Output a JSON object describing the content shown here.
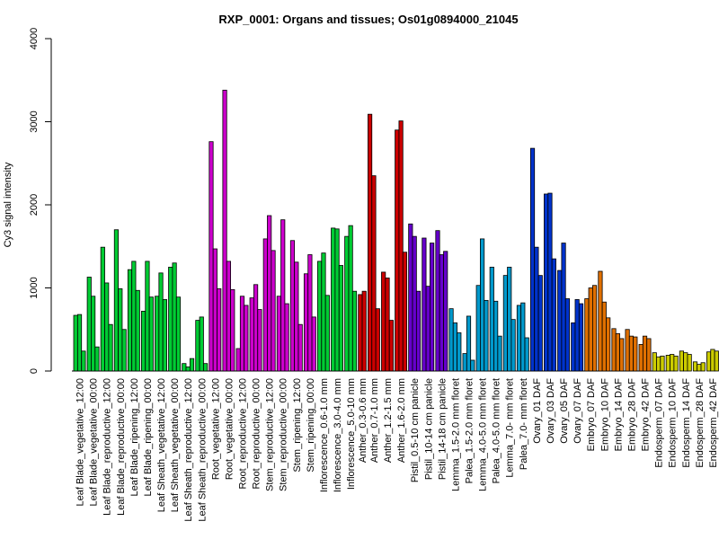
{
  "chart_data": {
    "type": "bar",
    "title": "RXP_0001: Organs and tissues; Os01g0894000_21045",
    "xlabel": "",
    "ylabel": "Cy3 signal intensity",
    "ylim": [
      0,
      4000
    ],
    "yticks": [
      0,
      1000,
      2000,
      3000,
      4000
    ],
    "grid": false,
    "legend": "none",
    "groups": [
      {
        "label": "Leaf Blade_vegetative_12:00",
        "color": "#00cc33",
        "values": [
          670,
          680,
          240
        ]
      },
      {
        "label": "Leaf Blade_vegetative_00:00",
        "color": "#00cc33",
        "values": [
          1130,
          900,
          290
        ]
      },
      {
        "label": "Leaf Blade_reproductive_12:00",
        "color": "#00cc33",
        "values": [
          1490,
          1060,
          560
        ]
      },
      {
        "label": "Leaf Blade_reproductive_00:00",
        "color": "#00cc33",
        "values": [
          1700,
          990,
          500
        ]
      },
      {
        "label": "Leaf Blade_ripening_12:00",
        "color": "#00cc33",
        "values": [
          1220,
          1320,
          970
        ]
      },
      {
        "label": "Leaf Blade_ripening_00:00",
        "color": "#00cc33",
        "values": [
          720,
          1320,
          890
        ]
      },
      {
        "label": "Leaf Sheath_vegetative_12:00",
        "color": "#00cc33",
        "values": [
          900,
          1180,
          860
        ]
      },
      {
        "label": "Leaf Sheath_vegetative_00:00",
        "color": "#00cc33",
        "values": [
          1250,
          1300,
          890
        ]
      },
      {
        "label": "Leaf Sheath_reproductive_12:00",
        "color": "#00cc33",
        "values": [
          90,
          50,
          150
        ]
      },
      {
        "label": "Leaf Sheath_reproductive_00:00",
        "color": "#00cc33",
        "values": [
          610,
          650,
          90
        ]
      },
      {
        "label": "Root_vegetative_12:00",
        "color": "#cc00cc",
        "values": [
          2760,
          1470,
          990
        ]
      },
      {
        "label": "Root_vegetative_00:00",
        "color": "#cc00cc",
        "values": [
          3380,
          1320,
          980
        ]
      },
      {
        "label": "Root_reproductive_12:00",
        "color": "#cc00cc",
        "values": [
          270,
          900,
          790
        ]
      },
      {
        "label": "Root_reproductive_00:00",
        "color": "#cc00cc",
        "values": [
          880,
          1040,
          740
        ]
      },
      {
        "label": "Stem_reproductive_12:00",
        "color": "#cc00cc",
        "values": [
          1590,
          1870,
          1450
        ]
      },
      {
        "label": "Stem_reproductive_00:00",
        "color": "#cc00cc",
        "values": [
          900,
          1820,
          810
        ]
      },
      {
        "label": "Stem_ripening_12:00",
        "color": "#cc00cc",
        "values": [
          1570,
          1310,
          560
        ]
      },
      {
        "label": "Stem_ripening_00:00",
        "color": "#cc00cc",
        "values": [
          1170,
          1400,
          650
        ]
      },
      {
        "label": "Inflorescence_0.6-1.0 mm",
        "color": "#00cc33",
        "values": [
          1320,
          1420,
          910
        ]
      },
      {
        "label": "Inflorescence_3.0-4.0 mm",
        "color": "#00cc33",
        "values": [
          1720,
          1710,
          1270
        ]
      },
      {
        "label": "Inflorescence_5.0-10 mm",
        "color": "#00cc33",
        "values": [
          1620,
          1750,
          960
        ]
      },
      {
        "label": "Anther_0.3-0.6 mm",
        "color": "#cc0000",
        "values": [
          920,
          960
        ]
      },
      {
        "label": "Anther_0.7-1.0 mm",
        "color": "#cc0000",
        "values": [
          3090,
          2350,
          750
        ]
      },
      {
        "label": "Anther_1.2-1.5 mm",
        "color": "#cc0000",
        "values": [
          1190,
          1120,
          610
        ]
      },
      {
        "label": "Anther_1.6-2.0 mm",
        "color": "#cc0000",
        "values": [
          2900,
          3010,
          1430
        ]
      },
      {
        "label": "Pistil_0.5-10 cm panicle",
        "color": "#6600cc",
        "values": [
          1770,
          1620,
          960
        ]
      },
      {
        "label": "Pistil_10-14 cm panicle",
        "color": "#6600cc",
        "values": [
          1600,
          1020,
          1540
        ]
      },
      {
        "label": "Pistil_14-18 cm panicle",
        "color": "#6600cc",
        "values": [
          1690,
          1400,
          1440
        ]
      },
      {
        "label": "Lemma_1.5-2.0 mm floret",
        "color": "#0099cc",
        "values": [
          750,
          580,
          460
        ]
      },
      {
        "label": "Palea_1.5-2.0 mm floret",
        "color": "#0099cc",
        "values": [
          210,
          660,
          130
        ]
      },
      {
        "label": "Lemma_4.0-5.0 mm floret",
        "color": "#0099cc",
        "values": [
          1030,
          1590,
          850
        ]
      },
      {
        "label": "Palea_4.0-5.0 mm floret",
        "color": "#0099cc",
        "values": [
          1250,
          840,
          420
        ]
      },
      {
        "label": "Lemma_7.0- mm floret",
        "color": "#0099cc",
        "values": [
          1150,
          1250,
          620
        ]
      },
      {
        "label": "Palea_7.0- mm floret",
        "color": "#0099cc",
        "values": [
          790,
          820,
          400
        ]
      },
      {
        "label": "Ovary_01 DAF",
        "color": "#0033cc",
        "values": [
          2680,
          1490,
          1150
        ]
      },
      {
        "label": "Ovary_03 DAF",
        "color": "#0033cc",
        "values": [
          2130,
          2140,
          1350
        ]
      },
      {
        "label": "Ovary_05 DAF",
        "color": "#0033cc",
        "values": [
          1210,
          1540,
          870
        ]
      },
      {
        "label": "Ovary_07 DAF",
        "color": "#0033cc",
        "values": [
          580,
          860,
          810
        ]
      },
      {
        "label": "Embryo_07 DAF",
        "color": "#e07000",
        "values": [
          870,
          1000,
          1030
        ]
      },
      {
        "label": "Embryo_10 DAF",
        "color": "#e07000",
        "values": [
          1200,
          830,
          640
        ]
      },
      {
        "label": "Embryo_14 DAF",
        "color": "#e07000",
        "values": [
          510,
          450,
          390
        ]
      },
      {
        "label": "Embryo_28 DAF",
        "color": "#e07000",
        "values": [
          500,
          420,
          410
        ]
      },
      {
        "label": "Embryo_42 DAF",
        "color": "#e07000",
        "values": [
          320,
          420,
          390
        ]
      },
      {
        "label": "Endosperm_07 DAF",
        "color": "#cccc00",
        "values": [
          220,
          170,
          180
        ]
      },
      {
        "label": "Endosperm_10 DAF",
        "color": "#cccc00",
        "values": [
          190,
          200,
          180
        ]
      },
      {
        "label": "Endosperm_14 DAF",
        "color": "#cccc00",
        "values": [
          240,
          220,
          200
        ]
      },
      {
        "label": "Endosperm_28 DAF",
        "color": "#cccc00",
        "values": [
          110,
          80,
          100
        ]
      },
      {
        "label": "Endosperm_42 DAF",
        "color": "#cccc00",
        "values": [
          230,
          260,
          240
        ]
      }
    ]
  }
}
